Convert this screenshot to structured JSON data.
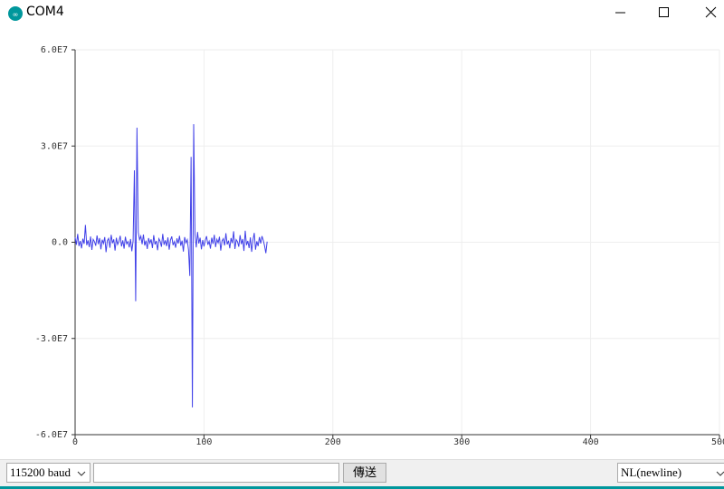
{
  "window": {
    "title": "COM4"
  },
  "chart_data": {
    "type": "line",
    "x": [
      0,
      1,
      2,
      3,
      4,
      5,
      6,
      7,
      8,
      9,
      10,
      11,
      12,
      13,
      14,
      15,
      16,
      17,
      18,
      19,
      20,
      21,
      22,
      23,
      24,
      25,
      26,
      27,
      28,
      29,
      30,
      31,
      32,
      33,
      34,
      35,
      36,
      37,
      38,
      39,
      40,
      41,
      42,
      43,
      44,
      45,
      46,
      47,
      48,
      49,
      50,
      51,
      52,
      53,
      54,
      55,
      56,
      57,
      58,
      59,
      60,
      61,
      62,
      63,
      64,
      65,
      66,
      67,
      68,
      69,
      70,
      71,
      72,
      73,
      74,
      75,
      76,
      77,
      78,
      79,
      80,
      81,
      82,
      83,
      84,
      85,
      86,
      87,
      88,
      89,
      90,
      91,
      92,
      93,
      94,
      95,
      96,
      97,
      98,
      99,
      100,
      101,
      102,
      103,
      104,
      105,
      106,
      107,
      108,
      109,
      110,
      111,
      112,
      113,
      114,
      115,
      116,
      117,
      118,
      119,
      120,
      121,
      122,
      123,
      124,
      125,
      126,
      127,
      128,
      129,
      130,
      131,
      132,
      133,
      134,
      135,
      136,
      137,
      138,
      139,
      140,
      141,
      142,
      143,
      144,
      145,
      146,
      147,
      148,
      149
    ],
    "series": [
      {
        "color": "#4040e8",
        "values": [
          1500000.0,
          -800000.0,
          2600000.0,
          -1200000.0,
          400000.0,
          -1900000.0,
          1100000.0,
          -500000.0,
          5400000.0,
          -900000.0,
          600000.0,
          -1500000.0,
          1800000.0,
          -2400000.0,
          900000.0,
          200000.0,
          -1100000.0,
          2100000.0,
          -600000.0,
          1300000.0,
          -2200000.0,
          800000.0,
          -400000.0,
          1600000.0,
          -3100000.0,
          500000.0,
          1200000.0,
          -1700000.0,
          2300000.0,
          -300000.0,
          900000.0,
          -2600000.0,
          1400000.0,
          -700000.0,
          300000.0,
          2000000.0,
          -1300000.0,
          600000.0,
          -2000000.0,
          1700000.0,
          -500000.0,
          200000.0,
          -1600000.0,
          1000000.0,
          -2800000.0,
          400000.0,
          22400000.0,
          -18400000.0,
          35700000.0,
          3100000.0,
          800000.0,
          1900000.0,
          -600000.0,
          2400000.0,
          -1000000.0,
          500000.0,
          -2100000.0,
          1300000.0,
          -300000.0,
          900000.0,
          -1800000.0,
          2200000.0,
          -700000.0,
          400000.0,
          -2500000.0,
          1100000.0,
          300000.0,
          -1400000.0,
          2600000.0,
          -800000.0,
          600000.0,
          -1200000.0,
          1500000.0,
          -2300000.0,
          700000.0,
          1800000.0,
          -900000.0,
          200000.0,
          -1700000.0,
          1200000.0,
          -400000.0,
          2000000.0,
          -1100000.0,
          500000.0,
          -2900000.0,
          1600000.0,
          -200000.0,
          800000.0,
          -2400000.0,
          -10500000.0,
          26600000.0,
          -51500000.0,
          36800000.0,
          2500000.0,
          -1600000.0,
          3200000.0,
          -400000.0,
          1400000.0,
          -2200000.0,
          700000.0,
          -1300000.0,
          600000.0,
          1900000.0,
          -800000.0,
          300000.0,
          -2000000.0,
          1400000.0,
          -500000.0,
          2300000.0,
          -1500000.0,
          900000.0,
          -200000.0,
          1700000.0,
          -2600000.0,
          400000.0,
          1100000.0,
          -1000000.0,
          2800000.0,
          -700000.0,
          500000.0,
          -1900000.0,
          1300000.0,
          -300000.0,
          3400000.0,
          -2100000.0,
          800000.0,
          200000.0,
          -1400000.0,
          2200000.0,
          -600000.0,
          1000000.0,
          -2700000.0,
          3600000.0,
          -900000.0,
          400000.0,
          -1800000.0,
          1500000.0,
          -3000000.0,
          700000.0,
          2900000.0,
          -2300000.0,
          300000.0,
          -1200000.0,
          1600000.0,
          -400000.0,
          1900000.0,
          600000.0,
          -1100000.0,
          -3400000.0,
          200000.0
        ]
      }
    ],
    "xlim": [
      0,
      500
    ],
    "xticks": [
      0,
      100,
      200,
      300,
      400,
      500
    ],
    "ylim": [
      -60000000,
      60000000
    ],
    "yticks": [
      {
        "value": -60000000,
        "label": "-6.0E7"
      },
      {
        "value": -30000000,
        "label": "-3.0E7"
      },
      {
        "value": 0,
        "label": "0.0"
      },
      {
        "value": 30000000,
        "label": "3.0E7"
      },
      {
        "value": 60000000,
        "label": "6.0E7"
      }
    ],
    "grid": true
  },
  "controls": {
    "baud": "115200 baud",
    "send": "傳送",
    "line_ending": "NL(newline)"
  }
}
